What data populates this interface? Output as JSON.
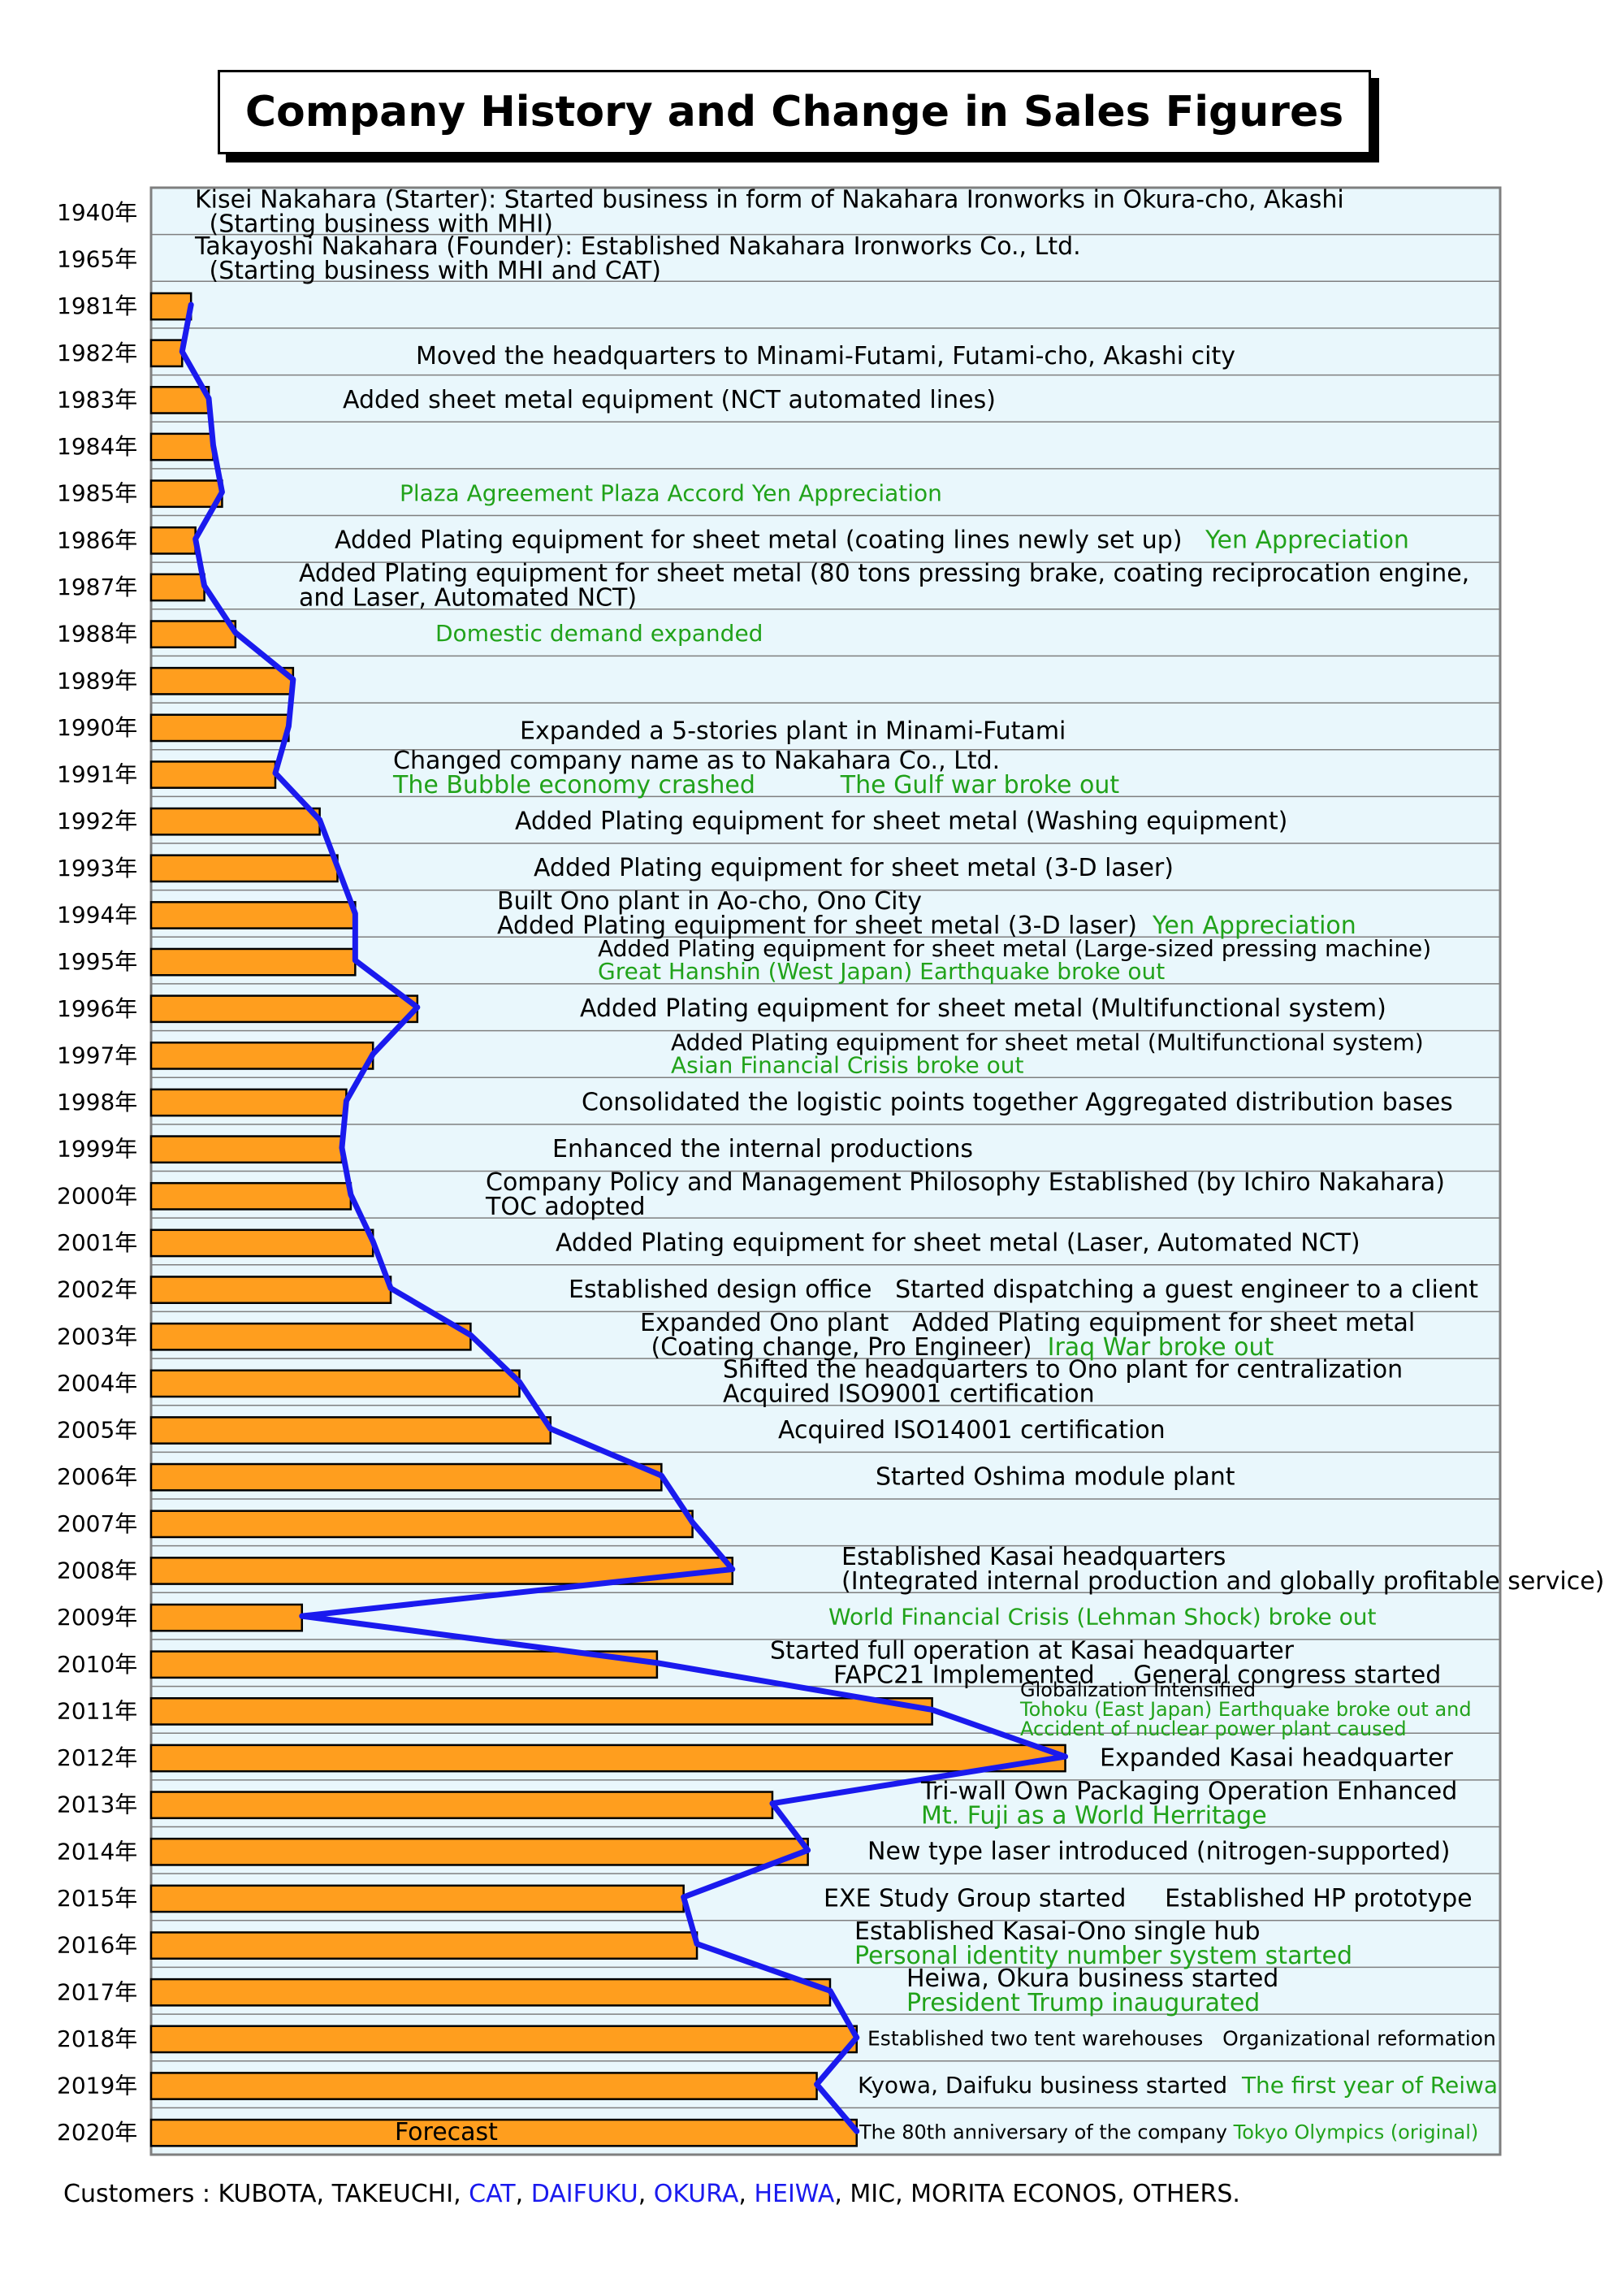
{
  "title": "Company History and Change in Sales Figures",
  "colors": {
    "panel": "#e9f7fc",
    "bar": "#ff9e1e",
    "line": "#1a1aee",
    "green": "#21a21a",
    "blue": "#1a1aee"
  },
  "chart_data": {
    "type": "bar",
    "title": "Company History and Change in Sales Figures",
    "orientation": "horizontal",
    "categories": [
      "1940年",
      "1965年",
      "1981年",
      "1982年",
      "1983年",
      "1984年",
      "1985年",
      "1986年",
      "1987年",
      "1988年",
      "1989年",
      "1990年",
      "1991年",
      "1992年",
      "1993年",
      "1994年",
      "1995年",
      "1996年",
      "1997年",
      "1998年",
      "1999年",
      "2000年",
      "2001年",
      "2002年",
      "2003年",
      "2004年",
      "2005年",
      "2006年",
      "2007年",
      "2008年",
      "2009年",
      "2010年",
      "2011年",
      "2012年",
      "2013年",
      "2014年",
      "2015年",
      "2016年",
      "2017年",
      "2018年",
      "2019年",
      "2020年"
    ],
    "values": [
      null,
      null,
      4.5,
      3.5,
      6.5,
      7,
      8,
      5,
      6,
      9.5,
      16,
      15.5,
      14,
      19,
      21,
      23,
      23,
      30,
      25,
      22,
      21.5,
      22.5,
      25,
      27,
      36,
      41.5,
      45,
      57.5,
      61,
      65.5,
      17,
      57,
      88,
      103,
      70,
      74,
      60,
      61.5,
      76.5,
      79.5,
      75,
      79.5
    ],
    "line_values": [
      null,
      null,
      4.5,
      3.5,
      6.5,
      7,
      8,
      5,
      6,
      9.5,
      16,
      15.5,
      14,
      19,
      21,
      23,
      23,
      30,
      25,
      22,
      21.5,
      22.5,
      25,
      27,
      36,
      41.5,
      45,
      57.5,
      61,
      65.5,
      17,
      57,
      88,
      103,
      70,
      74,
      60,
      61.5,
      76.5,
      79.5,
      75,
      79.5
    ],
    "xlim": [
      0,
      152
    ],
    "forecast_label": "Forecast",
    "grid": "horizontal",
    "events": [
      [
        {
          "t": [
            {
              "s": "Kisei Nakahara (Starter): Started business in form of Nakahara Ironworks in Okura-cho, Akashi"
            }
          ]
        },
        {
          "t": [
            {
              "s": " (Starting business with MHI)"
            }
          ]
        }
      ],
      [
        {
          "t": [
            {
              "s": "Takayoshi Nakahara (Founder): Established Nakahara Ironworks Co., Ltd."
            }
          ]
        },
        {
          "t": [
            {
              "s": " (Starting business with MHI and CAT)"
            }
          ]
        }
      ],
      [],
      [
        {
          "t": [
            {
              "s": "Moved the headquarters to Minami-Futami, Futami-cho, Akashi city"
            }
          ]
        }
      ],
      [
        {
          "t": [
            {
              "s": "Added sheet metal equipment (NCT automated lines)"
            }
          ]
        }
      ],
      [],
      [
        {
          "t": [
            {
              "s": "Plaza Agreement Plaza Accord Yen Appreciation",
              "g": true
            }
          ]
        }
      ],
      [
        {
          "t": [
            {
              "s": "Added Plating equipment for sheet metal (coating lines newly set up)"
            },
            {
              "s": "   Yen Appreciation",
              "g": true
            }
          ]
        }
      ],
      [
        {
          "t": [
            {
              "s": "Added Plating equipment for sheet metal (80 tons pressing brake, coating reciprocation engine,"
            }
          ]
        },
        {
          "t": [
            {
              "s": "and Laser, Automated NCT)"
            }
          ]
        }
      ],
      [
        {
          "t": [
            {
              "s": "Domestic demand expanded",
              "g": true
            }
          ]
        }
      ],
      [],
      [
        {
          "t": [
            {
              "s": "Expanded a 5-stories plant in Minami-Futami"
            }
          ]
        }
      ],
      [
        {
          "t": [
            {
              "s": "Changed company name as to Nakahara Co., Ltd."
            }
          ]
        },
        {
          "t": [
            {
              "s": "The Bubble economy crashed           The Gulf war broke out",
              "g": true
            }
          ]
        }
      ],
      [
        {
          "t": [
            {
              "s": "Added Plating equipment for sheet metal (Washing equipment)"
            }
          ]
        }
      ],
      [
        {
          "t": [
            {
              "s": "Added Plating equipment for sheet metal (3-D laser)"
            }
          ]
        }
      ],
      [
        {
          "t": [
            {
              "s": "Built Ono plant in Ao-cho, Ono City"
            }
          ]
        },
        {
          "t": [
            {
              "s": "Added Plating equipment for sheet metal (3-D laser)"
            },
            {
              "s": "  Yen Appreciation",
              "g": true
            }
          ]
        }
      ],
      [
        {
          "t": [
            {
              "s": "Added Plating equipment for sheet metal (Large-sized pressing machine)"
            }
          ]
        },
        {
          "t": [
            {
              "s": "Great Hanshin (West Japan) Earthquake broke out",
              "g": true
            }
          ]
        }
      ],
      [
        {
          "t": [
            {
              "s": "Added Plating equipment for sheet metal (Multifunctional system)"
            }
          ]
        }
      ],
      [
        {
          "t": [
            {
              "s": "Added Plating equipment for sheet metal (Multifunctional system)"
            }
          ]
        },
        {
          "t": [
            {
              "s": "Asian Financial Crisis broke out",
              "g": true
            }
          ]
        }
      ],
      [
        {
          "t": [
            {
              "s": "Consolidated the logistic points together Aggregated distribution bases"
            }
          ]
        }
      ],
      [
        {
          "t": [
            {
              "s": "Enhanced the internal productions"
            }
          ]
        }
      ],
      [
        {
          "t": [
            {
              "s": "Company Policy and Management Philosophy Established (by Ichiro Nakahara)"
            }
          ]
        },
        {
          "t": [
            {
              "s": "TOC adopted"
            }
          ]
        }
      ],
      [
        {
          "t": [
            {
              "s": "Added Plating equipment for sheet metal (Laser, Automated NCT)"
            }
          ]
        }
      ],
      [
        {
          "t": [
            {
              "s": "Established design office   Started dispatching a guest engineer to a client"
            }
          ]
        }
      ],
      [
        {
          "t": [
            {
              "s": "Expanded Ono plant   Added Plating equipment for sheet metal"
            }
          ]
        },
        {
          "t": [
            {
              "s": " (Coating change, Pro Engineer)  "
            },
            {
              "s": "Iraq War broke out",
              "g": true
            }
          ]
        }
      ],
      [
        {
          "t": [
            {
              "s": "Shifted the headquarters to Ono plant for centralization"
            }
          ]
        },
        {
          "t": [
            {
              "s": "Acquired ISO9001 certification"
            }
          ]
        }
      ],
      [
        {
          "t": [
            {
              "s": "Acquired ISO14001 certification"
            }
          ]
        }
      ],
      [
        {
          "t": [
            {
              "s": "Started Oshima module plant"
            }
          ]
        }
      ],
      [],
      [
        {
          "t": [
            {
              "s": "Established Kasai headquarters"
            }
          ]
        },
        {
          "t": [
            {
              "s": "(Integrated internal production and globally profitable service)"
            }
          ]
        }
      ],
      [
        {
          "t": [
            {
              "s": "World Financial Crisis (Lehman Shock) broke out",
              "g": true
            }
          ]
        }
      ],
      [
        {
          "t": [
            {
              "s": "Started full operation at Kasai headquarter"
            }
          ]
        },
        {
          "t": [
            {
              "s": "FAPC21 Implemented     General congress started"
            }
          ]
        }
      ],
      [
        {
          "t": [
            {
              "s": "Globalization Intensified"
            }
          ]
        },
        {
          "t": [
            {
              "s": "Tohoku (East Japan) Earthquake broke out and",
              "g": true
            }
          ]
        },
        {
          "t": [
            {
              "s": "Accident of nuclear power plant caused",
              "g": true
            }
          ]
        }
      ],
      [
        {
          "t": [
            {
              "s": "Expanded Kasai headquarter"
            }
          ]
        }
      ],
      [
        {
          "t": [
            {
              "s": "Tri-wall Own Packaging Operation Enhanced"
            }
          ]
        },
        {
          "t": [
            {
              "s": "Mt. Fuji as a World Herritage",
              "g": true
            }
          ]
        }
      ],
      [
        {
          "t": [
            {
              "s": "New type laser introduced (nitrogen-supported)"
            }
          ]
        }
      ],
      [
        {
          "t": [
            {
              "s": "EXE Study Group started     Established HP prototype"
            }
          ]
        }
      ],
      [
        {
          "t": [
            {
              "s": "Established Kasai-Ono single hub"
            }
          ]
        },
        {
          "t": [
            {
              "s": "Personal identity number system started",
              "g": true
            }
          ]
        }
      ],
      [
        {
          "t": [
            {
              "s": "Heiwa, Okura business started"
            }
          ]
        },
        {
          "t": [
            {
              "s": "President Trump inaugurated",
              "g": true
            }
          ]
        }
      ],
      [
        {
          "t": [
            {
              "s": "Established two tent warehouses   Organizational reformation"
            }
          ]
        }
      ],
      [
        {
          "t": [
            {
              "s": "Kyowa, Daifuku business started  "
            },
            {
              "s": "The first year of Reiwa",
              "g": true
            }
          ]
        }
      ],
      [
        {
          "t": [
            {
              "s": "The 80th anniversary of the company "
            },
            {
              "s": "Tokyo Olympics (original)",
              "g": true
            }
          ]
        }
      ]
    ]
  },
  "customers": [
    {
      "s": "Customers : KUBOTA, TAKEUCHI, "
    },
    {
      "s": "CAT",
      "b": true
    },
    {
      "s": ", "
    },
    {
      "s": "DAIFUKU",
      "b": true
    },
    {
      "s": ", "
    },
    {
      "s": "OKURA",
      "b": true
    },
    {
      "s": ", "
    },
    {
      "s": "HEIWA",
      "b": true
    },
    {
      "s": ", MIC, MORITA ECONOS, OTHERS."
    }
  ]
}
